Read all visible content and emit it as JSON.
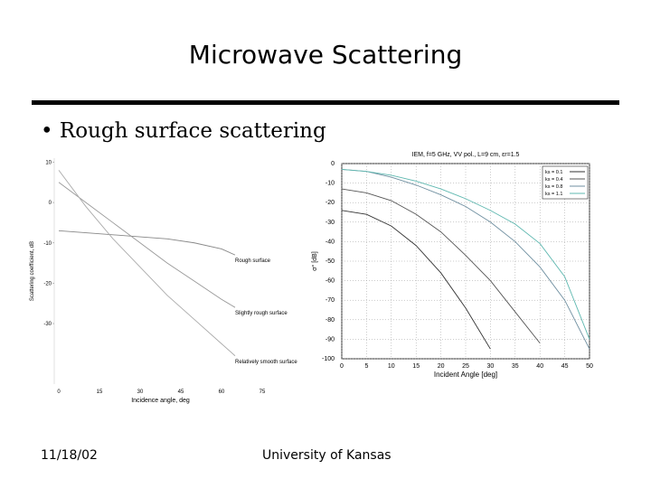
{
  "slide": {
    "title": "Microwave Scattering",
    "bullet": "• Rough surface scattering",
    "footer_date": "11/18/02",
    "footer_org": "University of Kansas"
  },
  "chart_data": [
    {
      "type": "line",
      "xlabel": "Incidence angle, deg",
      "ylabel": "Scattering coefficient, dB",
      "x": [
        0,
        10,
        20,
        30,
        40,
        50,
        60,
        65
      ],
      "series": [
        {
          "name": "Rough surface",
          "color": "#888888",
          "values": [
            -7,
            -7.5,
            -8,
            -8.5,
            -9,
            -10,
            -11.5,
            -13
          ]
        },
        {
          "name": "Slightly rough surface",
          "color": "#999999",
          "values": [
            5,
            0,
            -5,
            -10,
            -15,
            -19.5,
            -24,
            -26
          ]
        },
        {
          "name": "Relatively smooth surface",
          "color": "#aaaaaa",
          "values": [
            8,
            -1,
            -9,
            -16,
            -23,
            -29,
            -35,
            -38
          ]
        }
      ],
      "xlim": [
        0,
        75
      ],
      "xticks": [
        0,
        15,
        30,
        45,
        60,
        75
      ],
      "ylim": [
        -45,
        11
      ],
      "yticks": [
        10,
        0,
        -10,
        -20,
        -30
      ],
      "grid": false,
      "legend": "none"
    },
    {
      "type": "line",
      "title": "IEM, f=5 GHz, VV pol., L=9 cm, εr=1.5",
      "xlabel": "Incident Angle [deg]",
      "ylabel": "σ° [dB]",
      "x": [
        0,
        5,
        10,
        15,
        20,
        25,
        30,
        35,
        40,
        45,
        50
      ],
      "series": [
        {
          "name": "ks = 0.1",
          "color": "#333333",
          "values": [
            -24,
            -26,
            -32,
            -42,
            -56,
            -74,
            -95,
            null,
            null,
            null,
            null
          ]
        },
        {
          "name": "ks = 0.4",
          "color": "#555555",
          "values": [
            -13,
            -15,
            -19,
            -26,
            -35,
            -47,
            -60,
            -76,
            -92,
            null,
            null
          ]
        },
        {
          "name": "ks = 0.8",
          "color": "#6f8fa0",
          "values": [
            -3,
            -4,
            -7,
            -11,
            -16,
            -22,
            -30,
            -40,
            -53,
            -70,
            -95
          ]
        },
        {
          "name": "ks = 1.1",
          "color": "#5fb8b0",
          "values": [
            -3,
            -4,
            -6,
            -9,
            -13,
            -18,
            -24,
            -31,
            -41,
            -58,
            -90
          ]
        }
      ],
      "xlim": [
        0,
        50
      ],
      "xticks": [
        0,
        5,
        10,
        15,
        20,
        25,
        30,
        35,
        40,
        45,
        50
      ],
      "ylim": [
        -100,
        0
      ],
      "yticks": [
        0,
        -10,
        -20,
        -30,
        -40,
        -50,
        -60,
        -70,
        -80,
        -90,
        -100
      ],
      "grid": true,
      "legend": "upper right"
    }
  ]
}
